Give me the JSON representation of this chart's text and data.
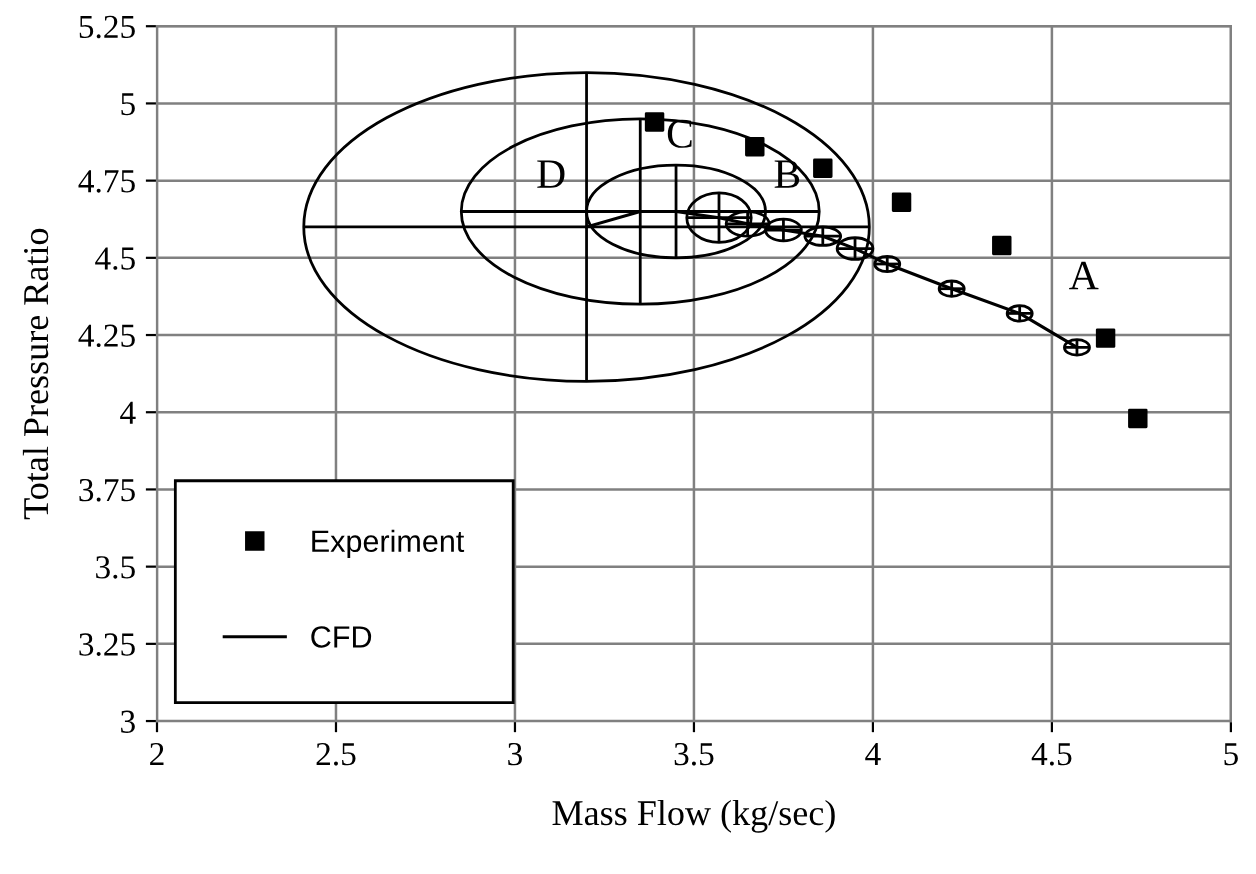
{
  "chart_data": {
    "type": "scatter",
    "xlabel": "Mass Flow (kg/sec)",
    "ylabel": "Total Pressure Ratio",
    "xlim": [
      2,
      5
    ],
    "xticks": [
      2,
      2.5,
      3,
      3.5,
      4,
      4.5,
      5
    ],
    "ylim": [
      3,
      5.25
    ],
    "yticks": [
      3,
      3.25,
      3.5,
      3.75,
      4,
      4.25,
      4.5,
      4.75,
      5,
      5.25
    ],
    "grid": true,
    "legend": "bottom left",
    "series": [
      {
        "name": "Experiment",
        "marker": "square",
        "color": "#000000",
        "x": [
          3.39,
          3.67,
          3.86,
          4.08,
          4.36,
          4.65,
          4.74
        ],
        "values": [
          4.94,
          4.86,
          4.79,
          4.68,
          4.54,
          4.24,
          3.98
        ]
      },
      {
        "name": "CFD",
        "type": "line",
        "marker": "circle",
        "color": "#000000",
        "x": [
          3.2,
          3.35,
          3.45,
          3.57,
          3.65,
          3.75,
          3.86,
          3.95,
          4.04,
          4.22,
          4.41,
          4.57
        ],
        "values": [
          4.6,
          4.65,
          4.65,
          4.63,
          4.61,
          4.59,
          4.57,
          4.53,
          4.48,
          4.4,
          4.32,
          4.21
        ],
        "xerrors": [
          0.79,
          0.5,
          0.25,
          0.09,
          0.06,
          0.05,
          0.05,
          0.05,
          0.035,
          0.035,
          0.035,
          0.035
        ],
        "errors": [
          0.5,
          0.3,
          0.15,
          0.08,
          0.04,
          0.035,
          0.03,
          0.035,
          0.025,
          0.025,
          0.025,
          0.025
        ]
      }
    ],
    "annotations": [
      "A",
      "B",
      "C",
      "D"
    ]
  }
}
